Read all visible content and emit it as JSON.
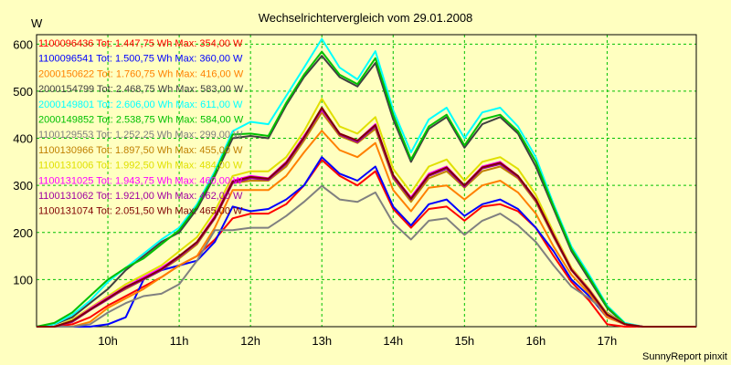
{
  "chart_data": {
    "type": "line",
    "title": "Wechselrichtervergleich vom 29.01.2008",
    "ylabel": "W",
    "xlabel": "",
    "footer": "SunnyReport pinxit",
    "ylim": [
      0,
      620
    ],
    "xlim": [
      9.0,
      18.25
    ],
    "grid": true,
    "legend_position": "top-left",
    "x_ticks": [
      {
        "v": 10,
        "label": "10h"
      },
      {
        "v": 11,
        "label": "11h"
      },
      {
        "v": 12,
        "label": "12h"
      },
      {
        "v": 13,
        "label": "13h"
      },
      {
        "v": 14,
        "label": "14h"
      },
      {
        "v": 15,
        "label": "15h"
      },
      {
        "v": 16,
        "label": "16h"
      },
      {
        "v": 17,
        "label": "17h"
      }
    ],
    "y_ticks": [
      {
        "v": 100,
        "label": "100"
      },
      {
        "v": 200,
        "label": "200"
      },
      {
        "v": 300,
        "label": "300"
      },
      {
        "v": 400,
        "label": "400"
      },
      {
        "v": 500,
        "label": "500"
      },
      {
        "v": 600,
        "label": "600"
      }
    ],
    "x": [
      9.0,
      9.25,
      9.5,
      9.75,
      10.0,
      10.25,
      10.5,
      10.75,
      11.0,
      11.25,
      11.5,
      11.75,
      12.0,
      12.25,
      12.5,
      12.75,
      13.0,
      13.25,
      13.5,
      13.75,
      14.0,
      14.25,
      14.5,
      14.75,
      15.0,
      15.25,
      15.5,
      15.75,
      16.0,
      16.25,
      16.5,
      16.75,
      17.0,
      17.25,
      17.5,
      17.75,
      18.0,
      18.25
    ],
    "series": [
      {
        "name": "1100096436 Tot: 1.447,75 Wh Max: 354,00 W",
        "color": "#ff0000",
        "values": [
          0,
          0,
          5,
          20,
          45,
          65,
          85,
          105,
          130,
          150,
          185,
          230,
          240,
          240,
          260,
          300,
          354,
          320,
          300,
          330,
          250,
          210,
          250,
          255,
          225,
          255,
          260,
          245,
          210,
          150,
          95,
          55,
          5,
          0,
          0,
          0,
          0,
          0
        ]
      },
      {
        "name": "1100096541 Tot: 1.500,75 Wh Max: 360,00 W",
        "color": "#0000ff",
        "values": [
          0,
          0,
          0,
          0,
          5,
          20,
          100,
          120,
          130,
          140,
          180,
          255,
          245,
          250,
          270,
          300,
          360,
          325,
          310,
          340,
          255,
          215,
          260,
          270,
          235,
          260,
          270,
          250,
          210,
          160,
          100,
          65,
          20,
          5,
          0,
          0,
          0,
          0
        ]
      },
      {
        "name": "2000150622 Tot: 1.760,75 Wh Max: 416,00 W",
        "color": "#ff8000",
        "values": [
          0,
          0,
          0,
          10,
          40,
          60,
          80,
          105,
          130,
          150,
          210,
          290,
          290,
          290,
          320,
          370,
          416,
          375,
          360,
          390,
          290,
          245,
          295,
          300,
          270,
          300,
          310,
          285,
          240,
          170,
          110,
          70,
          20,
          5,
          0,
          0,
          0,
          0
        ]
      },
      {
        "name": "2000154799 Tot: 2.468,75 Wh Max: 583,00 W",
        "color": "#404040",
        "values": [
          0,
          5,
          20,
          50,
          80,
          120,
          150,
          180,
          200,
          250,
          320,
          400,
          405,
          400,
          470,
          530,
          575,
          530,
          510,
          560,
          440,
          350,
          420,
          445,
          380,
          430,
          445,
          410,
          340,
          250,
          160,
          100,
          40,
          5,
          0,
          0,
          0,
          0
        ]
      },
      {
        "name": "2000149801 Tot: 2.606,00 Wh Max: 611,00 W",
        "color": "#00ffff",
        "values": [
          0,
          5,
          25,
          55,
          95,
          125,
          155,
          185,
          210,
          260,
          330,
          415,
          435,
          430,
          490,
          550,
          611,
          550,
          525,
          585,
          460,
          370,
          440,
          465,
          400,
          455,
          465,
          425,
          360,
          260,
          170,
          110,
          45,
          8,
          0,
          0,
          0,
          0
        ]
      },
      {
        "name": "2000149852 Tot: 2.538,75 Wh Max: 584,00 W",
        "color": "#00c000",
        "values": [
          0,
          8,
          30,
          65,
          100,
          125,
          145,
          175,
          205,
          255,
          325,
          408,
          410,
          405,
          475,
          535,
          584,
          535,
          515,
          570,
          450,
          355,
          425,
          450,
          385,
          440,
          450,
          415,
          350,
          255,
          165,
          105,
          42,
          6,
          0,
          0,
          0,
          0
        ]
      },
      {
        "name": "1100129553 Tot: 1.252,25 Wh Max: 299,00 W",
        "color": "#808080",
        "values": [
          0,
          0,
          0,
          5,
          30,
          50,
          65,
          70,
          90,
          140,
          205,
          205,
          210,
          210,
          235,
          265,
          299,
          270,
          265,
          285,
          220,
          185,
          225,
          230,
          195,
          225,
          240,
          215,
          180,
          130,
          85,
          60,
          30,
          5,
          0,
          0,
          0,
          0
        ]
      },
      {
        "name": "1100130966 Tot: 1.897,50 Wh Max: 455,00 W",
        "color": "#c08000",
        "values": [
          0,
          0,
          10,
          35,
          60,
          80,
          100,
          120,
          145,
          175,
          230,
          305,
          310,
          310,
          340,
          395,
          455,
          405,
          390,
          420,
          315,
          265,
          315,
          330,
          295,
          330,
          340,
          315,
          265,
          190,
          120,
          75,
          25,
          5,
          0,
          0,
          0,
          0
        ]
      },
      {
        "name": "1100131006 Tot: 1.992,50 Wh Max: 484,00 W",
        "color": "#e0e000",
        "values": [
          0,
          0,
          15,
          40,
          65,
          90,
          110,
          130,
          160,
          190,
          245,
          320,
          330,
          330,
          360,
          415,
          484,
          425,
          410,
          445,
          335,
          285,
          340,
          355,
          310,
          350,
          360,
          335,
          280,
          200,
          125,
          80,
          28,
          5,
          0,
          0,
          0,
          0
        ]
      },
      {
        "name": "1100131025 Tot: 1.943,75 Wh Max: 460,00 W",
        "color": "#ff00ff",
        "values": [
          0,
          0,
          12,
          38,
          62,
          85,
          105,
          125,
          150,
          180,
          235,
          310,
          320,
          315,
          350,
          405,
          460,
          410,
          395,
          430,
          320,
          275,
          325,
          340,
          300,
          340,
          350,
          320,
          270,
          195,
          122,
          78,
          26,
          5,
          0,
          0,
          0,
          0
        ]
      },
      {
        "name": "1100131062 Tot: 1.921,00 Wh Max: 462,00 W",
        "color": "#a000a0",
        "values": [
          0,
          0,
          10,
          35,
          58,
          82,
          100,
          120,
          148,
          178,
          230,
          305,
          315,
          312,
          345,
          400,
          462,
          408,
          392,
          425,
          318,
          270,
          320,
          335,
          297,
          336,
          345,
          318,
          268,
          192,
          120,
          76,
          25,
          5,
          0,
          0,
          0,
          0
        ]
      },
      {
        "name": "1100131074 Tot: 2.051,50 Wh Max: 465,00 W",
        "color": "#800000",
        "values": [
          0,
          0,
          12,
          36,
          60,
          84,
          102,
          122,
          150,
          180,
          232,
          308,
          318,
          314,
          348,
          402,
          465,
          410,
          395,
          428,
          322,
          272,
          322,
          338,
          300,
          338,
          348,
          320,
          270,
          194,
          121,
          77,
          26,
          5,
          0,
          0,
          0,
          0
        ]
      }
    ]
  }
}
